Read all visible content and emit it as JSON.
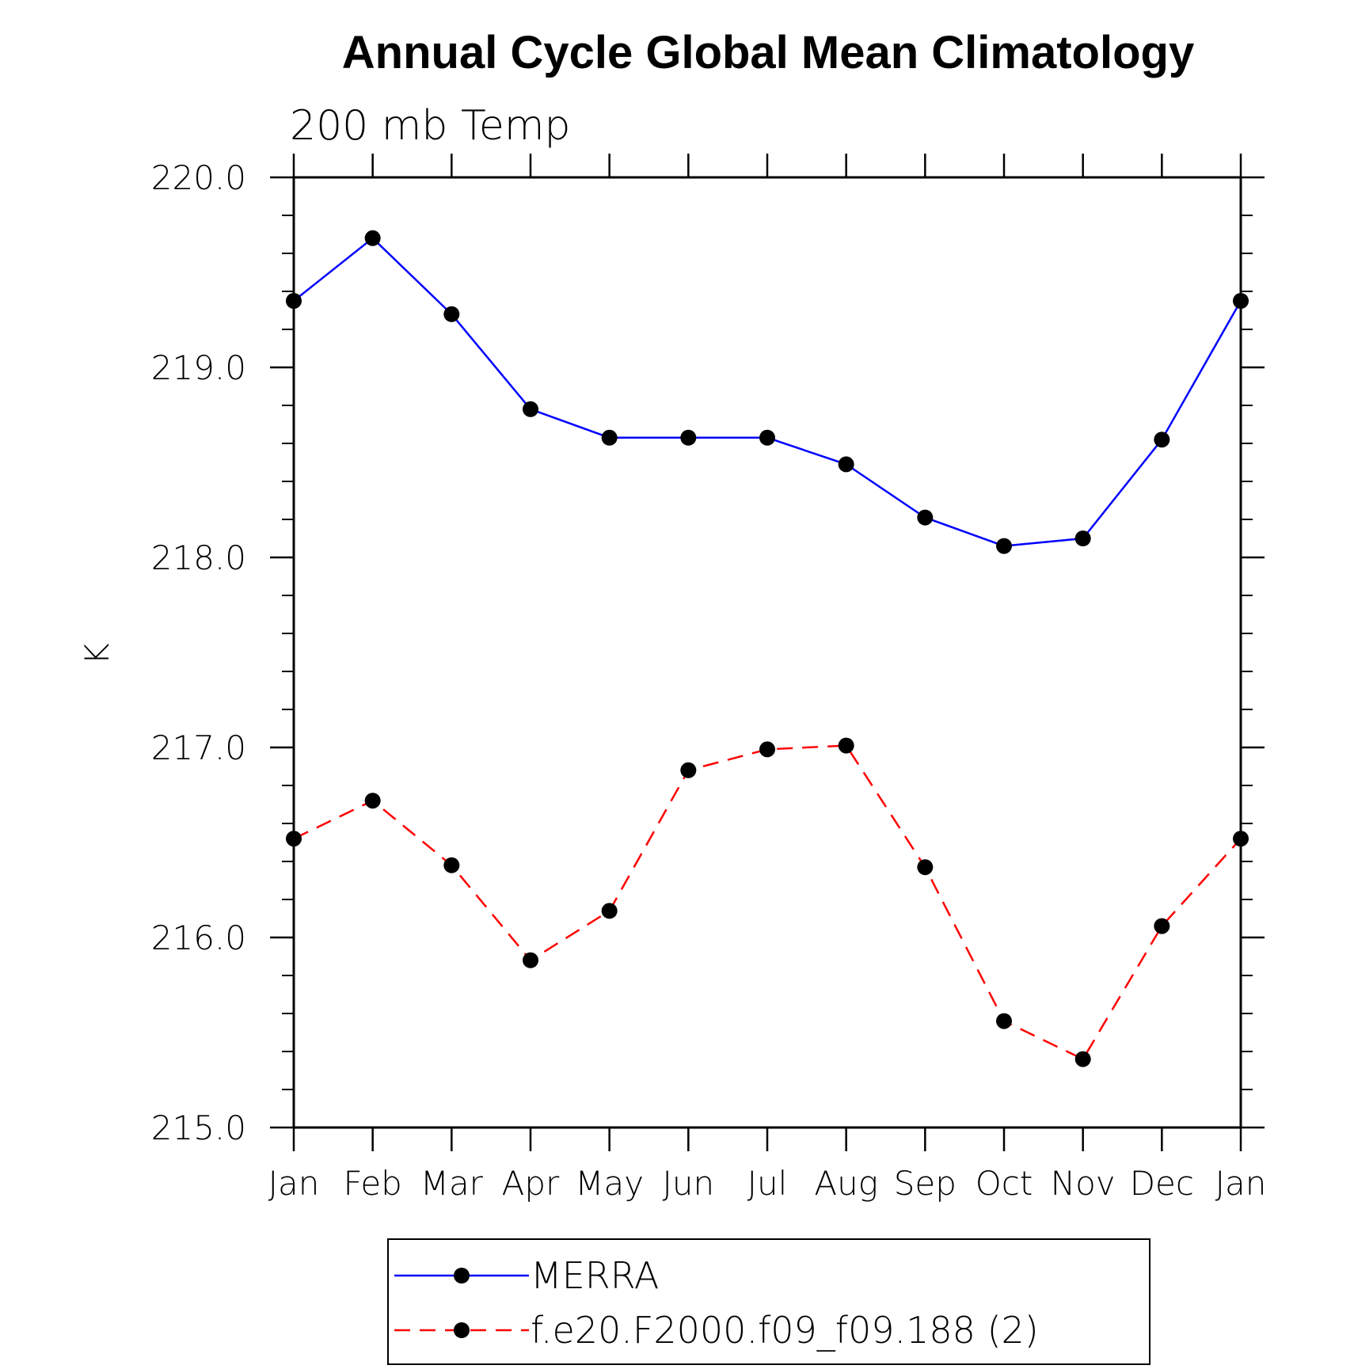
{
  "chart_data": {
    "type": "line",
    "title": "Annual Cycle Global Mean Climatology",
    "subtitle": "200 mb Temp",
    "xlabel": "",
    "ylabel": "K",
    "categories": [
      "Jan",
      "Feb",
      "Mar",
      "Apr",
      "May",
      "Jun",
      "Jul",
      "Aug",
      "Sep",
      "Oct",
      "Nov",
      "Dec",
      "Jan"
    ],
    "ylim": [
      215.0,
      220.0
    ],
    "yticks": [
      "215.0",
      "216.0",
      "217.0",
      "218.0",
      "219.0",
      "220.0"
    ],
    "grid": false,
    "legend_position": "bottom",
    "series": [
      {
        "name": "MERRA",
        "color": "#0000ff",
        "dash": "solid",
        "marker": "filled-circle",
        "values": [
          219.35,
          219.68,
          219.28,
          218.78,
          218.63,
          218.63,
          218.63,
          218.49,
          218.21,
          218.06,
          218.1,
          218.62,
          219.35
        ]
      },
      {
        "name": "f.e20.F2000.f09_f09.188 (2)",
        "color": "#ff0000",
        "dash": "dashed",
        "marker": "filled-circle",
        "values": [
          216.52,
          216.72,
          216.38,
          215.88,
          216.14,
          216.88,
          216.99,
          217.01,
          216.37,
          215.56,
          215.36,
          216.06,
          216.52
        ]
      }
    ]
  }
}
